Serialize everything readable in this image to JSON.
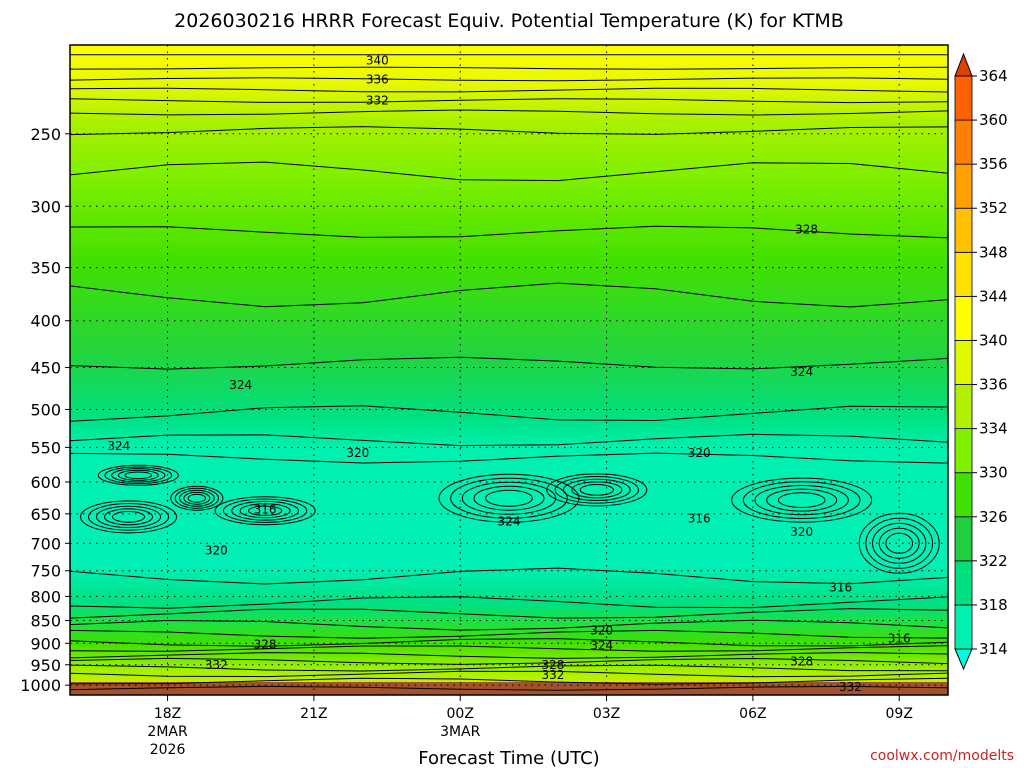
{
  "chart_data": {
    "type": "heatmap",
    "title": "2026030216 HRRR Forecast Equiv. Potential Temperature (K) for KTMB",
    "xlabel": "Forecast Time (UTC)",
    "ylabel": "",
    "x_ticks": [
      {
        "hour": 18,
        "lines": [
          "18Z",
          "2MAR",
          "2026"
        ]
      },
      {
        "hour": 21,
        "lines": [
          "21Z"
        ]
      },
      {
        "hour": 24,
        "lines": [
          "00Z",
          "3MAR"
        ]
      },
      {
        "hour": 27,
        "lines": [
          "03Z"
        ]
      },
      {
        "hour": 30,
        "lines": [
          "06Z"
        ]
      },
      {
        "hour": 33,
        "lines": [
          "09Z"
        ]
      }
    ],
    "xlim_hours": [
      16,
      34
    ],
    "y_ticks": [
      "250",
      "300",
      "350",
      "400",
      "450",
      "500",
      "550",
      "600",
      "650",
      "700",
      "750",
      "800",
      "850",
      "900",
      "950",
      "1000"
    ],
    "ylim_hpa": [
      1025,
      200
    ],
    "y_scale": "log-pressure",
    "grid": "dotted",
    "colorbar": {
      "levels": [
        314,
        318,
        322,
        326,
        330,
        334,
        336,
        340,
        344,
        348,
        352,
        356,
        360,
        364
      ],
      "colors": [
        "#00ffe0",
        "#00f0b0",
        "#00e080",
        "#20d040",
        "#40e000",
        "#80f000",
        "#b0f000",
        "#e0f800",
        "#ffff00",
        "#ffe000",
        "#ffc000",
        "#ffa000",
        "#ff8000",
        "#ff6000",
        "#e04000"
      ]
    },
    "contour_labels": [
      {
        "text": "340",
        "hour": 22.3,
        "hpa": 208
      },
      {
        "text": "336",
        "hour": 22.3,
        "hpa": 218
      },
      {
        "text": "332",
        "hour": 22.3,
        "hpa": 230
      },
      {
        "text": "328",
        "hour": 31.1,
        "hpa": 318
      },
      {
        "text": "324",
        "hour": 19.5,
        "hpa": 470
      },
      {
        "text": "324",
        "hour": 31.0,
        "hpa": 455
      },
      {
        "text": "324",
        "hour": 17.0,
        "hpa": 548
      },
      {
        "text": "320",
        "hour": 21.9,
        "hpa": 558
      },
      {
        "text": "320",
        "hour": 28.9,
        "hpa": 558
      },
      {
        "text": "316",
        "hour": 20.0,
        "hpa": 643
      },
      {
        "text": "324",
        "hour": 25.0,
        "hpa": 663
      },
      {
        "text": "316",
        "hour": 28.9,
        "hpa": 658
      },
      {
        "text": "320",
        "hour": 31.0,
        "hpa": 680
      },
      {
        "text": "320",
        "hour": 19.0,
        "hpa": 713
      },
      {
        "text": "316",
        "hour": 31.8,
        "hpa": 782
      },
      {
        "text": "320",
        "hour": 26.9,
        "hpa": 872
      },
      {
        "text": "316",
        "hour": 33.0,
        "hpa": 889
      },
      {
        "text": "328",
        "hour": 20.0,
        "hpa": 903
      },
      {
        "text": "324",
        "hour": 26.9,
        "hpa": 905
      },
      {
        "text": "332",
        "hour": 19.0,
        "hpa": 951
      },
      {
        "text": "328",
        "hour": 25.9,
        "hpa": 950
      },
      {
        "text": "328",
        "hour": 31.0,
        "hpa": 942
      },
      {
        "text": "332",
        "hour": 25.9,
        "hpa": 975
      },
      {
        "text": "332",
        "hour": 32.0,
        "hpa": 1005
      }
    ]
  },
  "credit": "coolwx.com/modelts"
}
